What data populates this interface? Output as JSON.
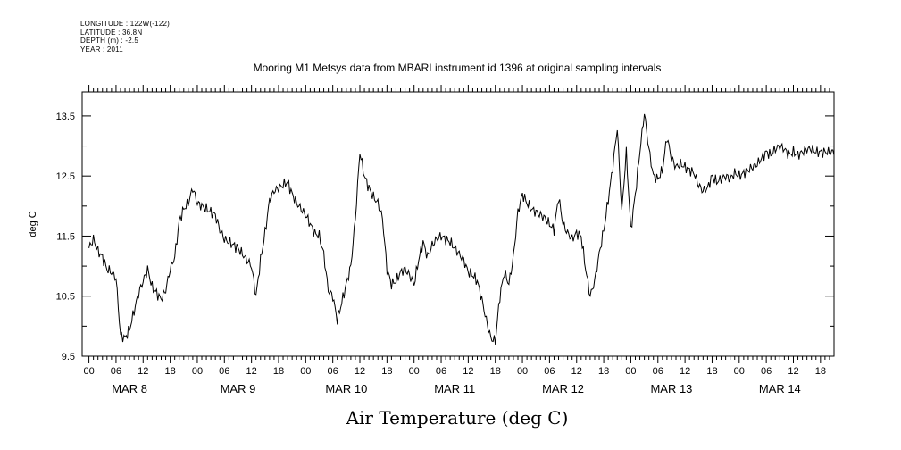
{
  "header": {
    "longitude": "LONGITUDE : 122W(-122)",
    "latitude": "LATITUDE : 36.8N",
    "depth": "DEPTH (m) : -2.5",
    "year": "YEAR : 2011"
  },
  "chart_data": {
    "type": "line",
    "title": "Mooring M1 Metsys data from MBARI instrument id 1396 at original sampling intervals",
    "xlabel": "Air Temperature (deg C)",
    "ylabel": "deg C",
    "ylim": [
      9.5,
      13.9
    ],
    "yticks": [
      9.5,
      10.5,
      11.5,
      12.5,
      13.5
    ],
    "xlim_hours": [
      -1.5,
      165
    ],
    "hour_tick_labels": [
      "00",
      "06",
      "12",
      "18"
    ],
    "day_labels": [
      "MAR  8",
      "MAR  9",
      "MAR 10",
      "MAR 11",
      "MAR 12",
      "MAR 13",
      "MAR 14"
    ],
    "grid": false,
    "series": [
      {
        "x_hours": [
          0,
          1,
          2,
          3,
          4,
          5,
          6,
          7,
          8,
          9,
          10,
          11,
          12,
          13,
          14,
          15,
          16,
          17,
          18,
          19,
          20,
          21,
          22,
          23,
          24,
          25,
          26,
          27,
          28,
          29,
          30,
          31,
          32,
          33,
          34,
          35,
          36,
          37,
          38,
          39,
          40,
          41,
          42,
          43,
          44,
          45,
          46,
          47,
          48,
          49,
          50,
          51,
          52,
          53,
          54,
          55,
          56,
          57,
          58,
          59,
          60,
          61,
          62,
          63,
          64,
          65,
          66,
          67,
          68,
          69,
          70,
          71,
          72,
          73,
          74,
          75,
          76,
          77,
          78,
          79,
          80,
          81,
          82,
          83,
          84,
          85,
          86,
          87,
          88,
          89,
          90,
          91,
          92,
          93,
          94,
          95,
          96,
          97,
          98,
          99,
          100,
          101,
          102,
          103,
          104,
          105,
          106,
          107,
          108,
          109,
          110,
          111,
          112,
          113,
          114,
          115,
          116,
          117,
          118,
          119,
          120,
          121,
          122,
          123,
          124,
          125,
          126,
          127,
          128,
          129,
          130,
          131,
          132,
          133,
          134,
          135,
          136,
          137,
          138,
          139,
          140,
          141,
          142,
          143,
          144,
          145,
          146,
          147,
          148,
          149,
          150,
          151,
          152,
          153,
          154,
          155,
          156,
          157,
          158,
          159,
          160,
          161,
          162,
          163,
          164,
          165
        ],
        "y": [
          11.3,
          11.45,
          11.25,
          11.15,
          10.95,
          10.9,
          10.8,
          9.85,
          9.8,
          9.95,
          10.25,
          10.55,
          10.75,
          10.95,
          10.65,
          10.55,
          10.45,
          10.6,
          10.95,
          11.15,
          11.75,
          11.95,
          12.05,
          12.3,
          12.05,
          12.0,
          11.95,
          11.9,
          11.85,
          11.6,
          11.45,
          11.4,
          11.35,
          11.3,
          11.2,
          11.1,
          11.0,
          10.5,
          11.1,
          11.55,
          12.1,
          12.25,
          12.3,
          12.35,
          12.4,
          12.2,
          12.05,
          11.95,
          11.85,
          11.7,
          11.55,
          11.5,
          11.2,
          10.6,
          10.5,
          10.1,
          10.4,
          10.7,
          11.0,
          11.8,
          12.9,
          12.5,
          12.3,
          12.15,
          12.05,
          11.8,
          10.95,
          10.7,
          10.75,
          10.9,
          10.95,
          10.85,
          10.7,
          11.1,
          11.4,
          11.15,
          11.35,
          11.45,
          11.5,
          11.45,
          11.4,
          11.3,
          11.2,
          11.1,
          10.9,
          10.85,
          10.75,
          10.45,
          10.1,
          9.8,
          9.75,
          10.5,
          10.9,
          10.7,
          11.15,
          11.9,
          12.2,
          12.05,
          11.95,
          11.9,
          11.85,
          11.8,
          11.7,
          11.6,
          12.15,
          11.7,
          11.55,
          11.45,
          11.55,
          11.5,
          10.95,
          10.5,
          10.75,
          11.2,
          11.6,
          12.1,
          12.65,
          13.3,
          11.9,
          12.9,
          11.6,
          12.2,
          12.9,
          13.55,
          12.95,
          12.5,
          12.45,
          12.6,
          13.15,
          12.8,
          12.65,
          12.7,
          12.65,
          12.6,
          12.55,
          12.35,
          12.25,
          12.3,
          12.5,
          12.4,
          12.45,
          12.5,
          12.45,
          12.55,
          12.5,
          12.55,
          12.6,
          12.65,
          12.7,
          12.8,
          12.9,
          12.85,
          12.95,
          13.0,
          12.95,
          12.85,
          12.9,
          12.85,
          12.9,
          12.95,
          12.95,
          12.9,
          12.9,
          12.9,
          12.9,
          12.9
        ]
      }
    ]
  }
}
